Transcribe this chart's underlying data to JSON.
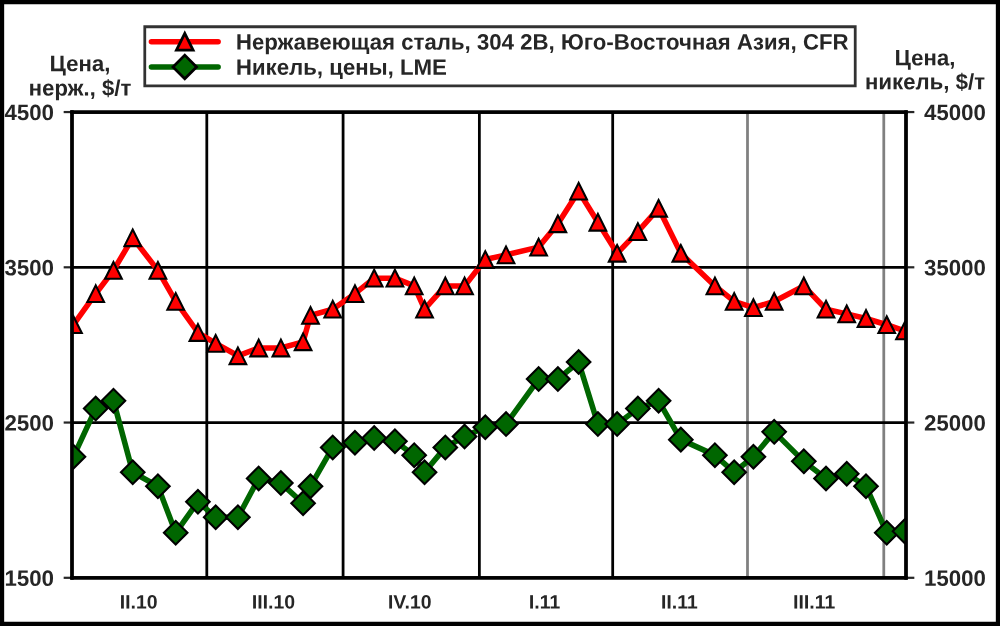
{
  "chart_data": {
    "type": "line",
    "ylabel": "Цена,\nнерж., $/т",
    "y2label": "Цена,\nникель, $/т",
    "x": [
      "2010-04-02",
      "2010-04-17",
      "2010-04-29",
      "2010-05-12",
      "2010-05-29",
      "2010-06-10",
      "2010-06-25",
      "2010-07-07",
      "2010-07-22",
      "2010-08-05",
      "2010-08-20",
      "2010-09-04",
      "2010-09-09",
      "2010-09-24",
      "2010-10-09",
      "2010-10-22",
      "2010-11-05",
      "2010-11-18",
      "2010-11-25",
      "2010-12-09",
      "2010-12-22",
      "2011-01-05",
      "2011-01-19",
      "2011-02-10",
      "2011-02-23",
      "2011-03-09",
      "2011-03-22",
      "2011-04-04",
      "2011-04-18",
      "2011-05-02",
      "2011-05-17",
      "2011-06-09",
      "2011-06-22",
      "2011-07-05",
      "2011-07-19",
      "2011-08-08",
      "2011-08-23",
      "2011-09-06",
      "2011-09-19",
      "2011-10-03",
      "2011-10-15"
    ],
    "series": [
      {
        "name": "Нержавеющая сталь, 304 2В, Юго-Восточная Азия, CFR",
        "color": "#ff0000",
        "marker": "triangle",
        "values": [
          3130,
          3330,
          3480,
          3690,
          3480,
          3280,
          3080,
          3010,
          2930,
          2980,
          2980,
          3020,
          3190,
          3230,
          3330,
          3430,
          3430,
          3380,
          3230,
          3380,
          3380,
          3550,
          3580,
          3630,
          3780,
          3990,
          3790,
          3590,
          3730,
          3880,
          3590,
          3380,
          3280,
          3240,
          3280,
          3380,
          3230,
          3200,
          3170,
          3130,
          3090
        ]
      },
      {
        "name": "Никель, цены, LME",
        "color": "#006600",
        "marker": "diamond",
        "axis": "y2",
        "values": [
          22800,
          25900,
          26400,
          21800,
          20900,
          17900,
          19900,
          18900,
          18900,
          21400,
          21100,
          19800,
          20900,
          23400,
          23700,
          24000,
          23800,
          22900,
          21800,
          23400,
          24100,
          24700,
          24900,
          27800,
          27800,
          28900,
          24900,
          24900,
          25900,
          26400,
          23900,
          22900,
          21800,
          22800,
          24400,
          22500,
          21400,
          21700,
          20900,
          17900,
          18000
        ]
      }
    ],
    "xlim": [
      "2010-04-01",
      "2011-10-16"
    ],
    "xticks": [
      {
        "value": "2010-05-16",
        "label": "II.10"
      },
      {
        "value": "2010-08-15",
        "label": "III.10"
      },
      {
        "value": "2010-11-15",
        "label": "IV.10"
      },
      {
        "value": "2011-02-14",
        "label": "I.11"
      },
      {
        "value": "2011-05-16",
        "label": "II.11"
      },
      {
        "value": "2011-08-15",
        "label": "III.11"
      }
    ],
    "ylim": [
      1500,
      4500
    ],
    "yticks": [
      1500,
      2500,
      3500,
      4500
    ],
    "y2lim": [
      15000,
      45000
    ],
    "y2ticks": [
      15000,
      25000,
      35000,
      45000
    ],
    "ref_lines": [
      {
        "axis": "x",
        "value": "2010-07-01",
        "color": "#000000"
      },
      {
        "axis": "x",
        "value": "2010-10-01",
        "color": "#000000"
      },
      {
        "axis": "x",
        "value": "2011-01-01",
        "color": "#000000"
      },
      {
        "axis": "x",
        "value": "2011-04-01",
        "color": "#000000"
      },
      {
        "axis": "x",
        "value": "2011-07-01",
        "color": "#808080"
      },
      {
        "axis": "x",
        "value": "2011-10-01",
        "color": "#808080"
      }
    ],
    "grid": "y",
    "legend": "top",
    "line_style": "solid"
  }
}
